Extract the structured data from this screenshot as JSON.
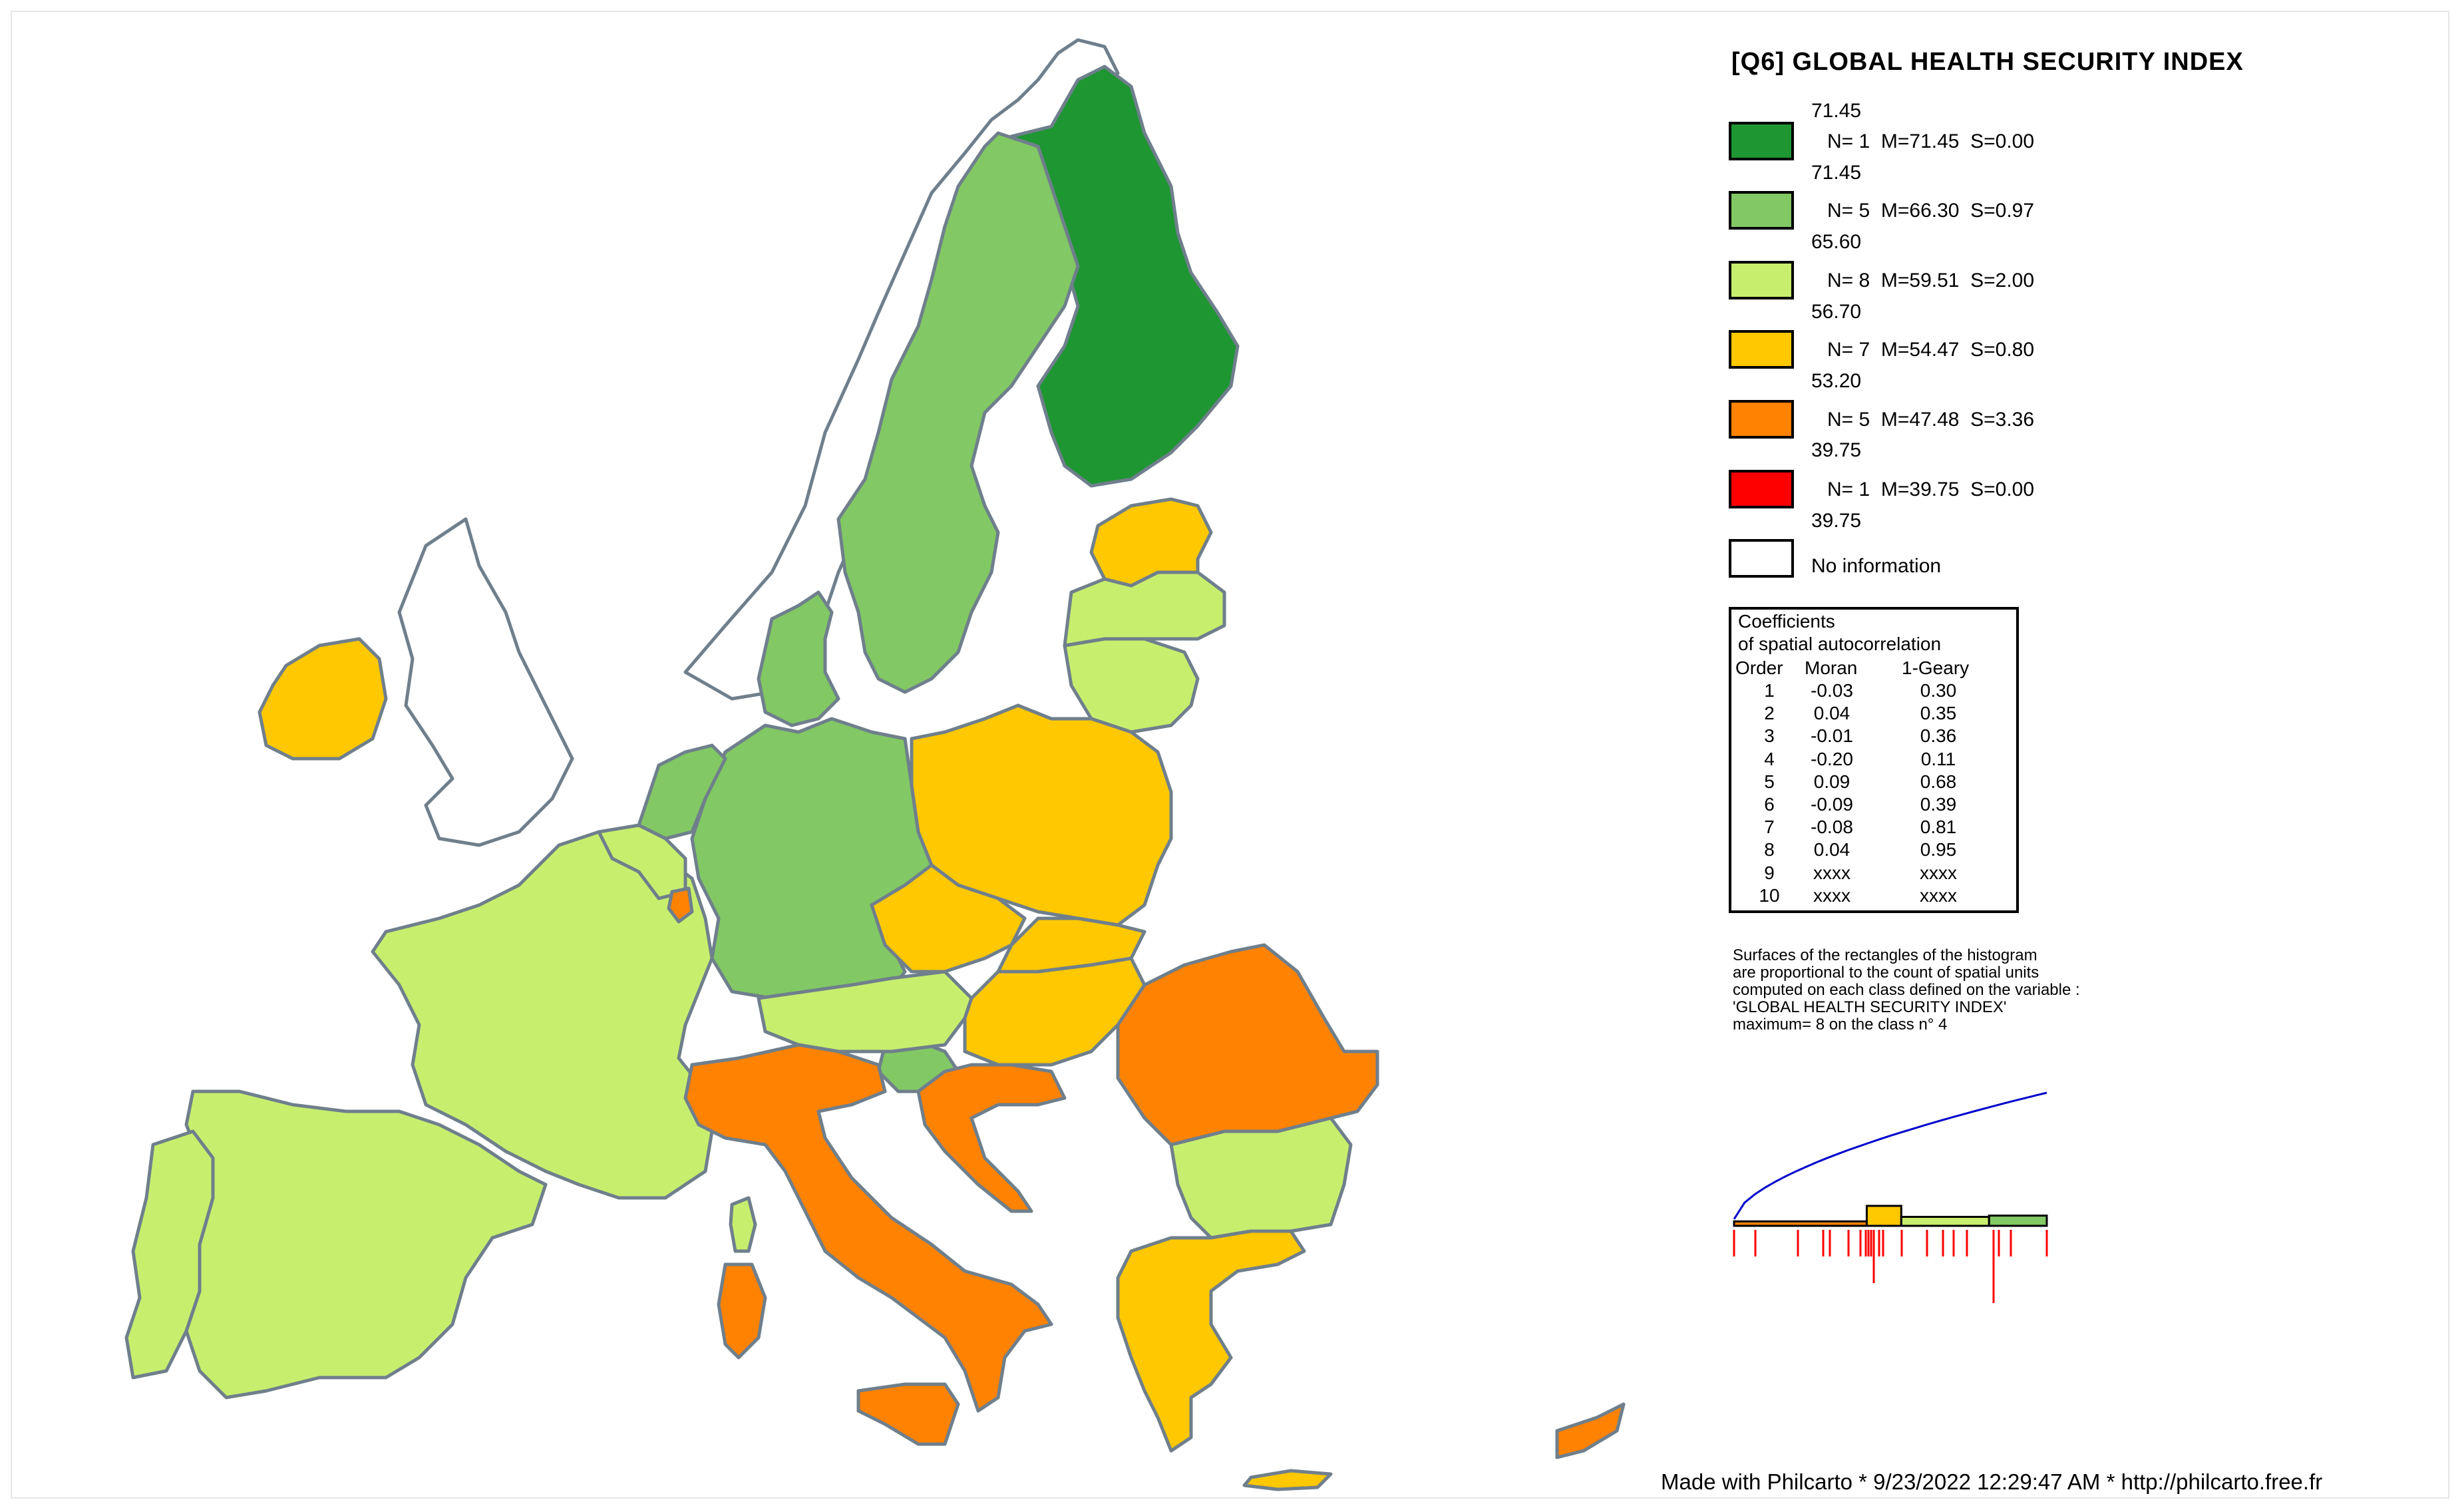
{
  "title": "[Q6] GLOBAL HEALTH SECURITY INDEX",
  "legend": {
    "classes": [
      {
        "upper": "71.45",
        "stats": "N= 1  M=71.45  S=0.00",
        "color": "#1e9632"
      },
      {
        "upper": "71.45",
        "stats": "N= 5  M=66.30  S=0.97",
        "color": "#82c864"
      },
      {
        "upper": "65.60",
        "stats": "N= 8  M=59.51  S=2.00",
        "color": "#c8ee6e"
      },
      {
        "upper": "56.70",
        "stats": "N= 7  M=54.47  S=0.80",
        "color": "#ffc800"
      },
      {
        "upper": "53.20",
        "stats": "N= 5  M=47.48  S=3.36",
        "color": "#ff8200"
      },
      {
        "upper": "39.75",
        "stats": "N= 1  M=39.75  S=0.00",
        "color": "#ff0000"
      }
    ],
    "bottom_value": "39.75",
    "no_info_label": "No information"
  },
  "coefficients": {
    "heading_1": "Coefficients",
    "heading_2": "of spatial autocorrelation",
    "col_order": "Order",
    "col_moran": "Moran",
    "col_geary": "1-Geary",
    "rows": [
      {
        "order": "1",
        "moran": "-0.03",
        "geary": "0.30"
      },
      {
        "order": "2",
        "moran": "0.04",
        "geary": "0.35"
      },
      {
        "order": "3",
        "moran": "-0.01",
        "geary": "0.36"
      },
      {
        "order": "4",
        "moran": "-0.20",
        "geary": "0.11"
      },
      {
        "order": "5",
        "moran": "0.09",
        "geary": "0.68"
      },
      {
        "order": "6",
        "moran": "-0.09",
        "geary": "0.39"
      },
      {
        "order": "7",
        "moran": "-0.08",
        "geary": "0.81"
      },
      {
        "order": "8",
        "moran": "0.04",
        "geary": "0.95"
      },
      {
        "order": "9",
        "moran": "xxxx",
        "geary": "xxxx"
      },
      {
        "order": "10",
        "moran": "xxxx",
        "geary": "xxxx"
      }
    ]
  },
  "histogram_note": [
    "Surfaces of the rectangles of the histogram",
    "are proportional to the count of spatial units",
    "computed on each class defined on the variable :",
    "'GLOBAL HEALTH SECURITY INDEX'",
    "maximum= 8 on the class n° 4"
  ],
  "credit": "Made with Philcarto * 9/23/2022 12:29:47 AM * http://philcarto.free.fr",
  "colors": {
    "class1": "#1e9632",
    "class2": "#82c864",
    "class3": "#c8ee6e",
    "class4": "#ffc800",
    "class5": "#ff8200",
    "class6": "#ff0000",
    "no_info": "#ffffff",
    "border": "#6f7f8c",
    "cumulative_line": "#0000cc",
    "rug": "#ff0000"
  }
}
